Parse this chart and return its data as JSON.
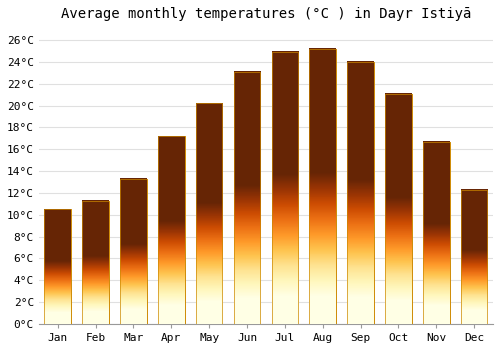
{
  "title": "Average monthly temperatures (°C ) in Dayr Istiyā",
  "months": [
    "Jan",
    "Feb",
    "Mar",
    "Apr",
    "May",
    "Jun",
    "Jul",
    "Aug",
    "Sep",
    "Oct",
    "Nov",
    "Dec"
  ],
  "values": [
    10.5,
    11.3,
    13.3,
    17.2,
    20.2,
    23.1,
    24.9,
    25.2,
    24.0,
    21.1,
    16.7,
    12.3
  ],
  "bar_color": "#FFA500",
  "bar_edge_color": "#CC8800",
  "ylim": [
    0,
    27
  ],
  "yticks": [
    0,
    2,
    4,
    6,
    8,
    10,
    12,
    14,
    16,
    18,
    20,
    22,
    24,
    26
  ],
  "ytick_labels": [
    "0°C",
    "2°C",
    "4°C",
    "6°C",
    "8°C",
    "10°C",
    "12°C",
    "14°C",
    "16°C",
    "18°C",
    "20°C",
    "22°C",
    "24°C",
    "26°C"
  ],
  "background_color": "#ffffff",
  "grid_color": "#e0e0e0",
  "title_fontsize": 10,
  "tick_fontsize": 8,
  "title_font": "monospace",
  "tick_font": "monospace",
  "bar_width": 0.7
}
